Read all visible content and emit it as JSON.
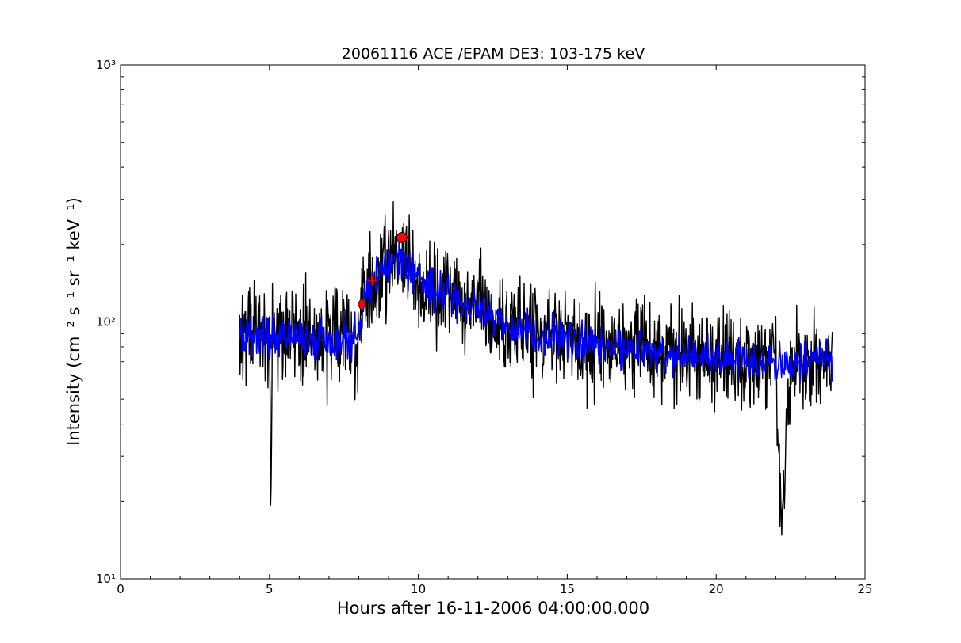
{
  "chart_data": {
    "type": "line",
    "title": "20061116 ACE /EPAM DE3: 103-175 keV",
    "xlabel": "Hours after 16-11-2006 04:00:00.000",
    "ylabel": "Intensity (cm⁻² s⁻¹ sr⁻¹ keV⁻¹)",
    "xlim": [
      0,
      25
    ],
    "ylim": [
      10,
      1000
    ],
    "y_scale": "log",
    "grid": false,
    "x_ticks": [
      0,
      5,
      10,
      15,
      20,
      25
    ],
    "x_tick_labels": [
      "0",
      "5",
      "10",
      "15",
      "20",
      "25"
    ],
    "y_ticks": [
      10,
      100,
      1000
    ],
    "y_tick_labels": [
      "10¹",
      "10²",
      "10³"
    ],
    "colors": {
      "raw": "#000000",
      "smoothed": "#0000ff",
      "markers": "#ff0000"
    },
    "series": [
      {
        "key": "raw",
        "x": [
          4.0,
          4.5,
          5.0,
          5.05,
          5.1,
          5.5,
          6.0,
          6.5,
          7.0,
          7.5,
          7.8,
          7.9,
          8.0,
          8.2,
          8.5,
          8.8,
          9.0,
          9.2,
          9.5,
          9.8,
          10.0,
          10.5,
          11.0,
          11.5,
          12.0,
          12.5,
          13.0,
          13.5,
          14.0,
          14.5,
          15.0,
          15.5,
          16.0,
          16.5,
          17.0,
          17.5,
          18.0,
          18.5,
          19.0,
          19.5,
          20.0,
          20.5,
          21.0,
          21.5,
          22.0,
          22.2,
          22.5,
          23.0,
          23.5,
          23.9
        ],
        "values": [
          90,
          95,
          80,
          21,
          85,
          88,
          92,
          90,
          85,
          88,
          95,
          60,
          100,
          130,
          150,
          170,
          180,
          175,
          165,
          150,
          140,
          130,
          125,
          120,
          115,
          100,
          95,
          92,
          90,
          88,
          85,
          80,
          82,
          80,
          78,
          80,
          75,
          74,
          75,
          73,
          72,
          74,
          70,
          68,
          70,
          17,
          70,
          68,
          70,
          72
        ]
      },
      {
        "key": "smoothed",
        "x": [
          4.0,
          4.5,
          5.0,
          5.5,
          6.0,
          6.5,
          7.0,
          7.5,
          7.8,
          8.0,
          8.2,
          8.5,
          8.8,
          9.0,
          9.3,
          9.5,
          9.8,
          10.0,
          10.5,
          11.0,
          11.5,
          12.0,
          12.5,
          13.0,
          13.5,
          14.0,
          14.5,
          15.0,
          15.5,
          16.0,
          16.5,
          17.0,
          17.5,
          18.0,
          18.5,
          19.0,
          19.5,
          20.0,
          20.5,
          21.0,
          21.5,
          22.0,
          22.5,
          23.0,
          23.5,
          23.9
        ],
        "values": [
          88,
          86,
          84,
          86,
          88,
          87,
          86,
          88,
          90,
          95,
          118,
          145,
          160,
          168,
          175,
          165,
          155,
          145,
          135,
          128,
          122,
          115,
          105,
          98,
          94,
          90,
          88,
          86,
          83,
          82,
          80,
          79,
          79,
          77,
          76,
          75,
          74,
          73,
          73,
          71,
          70,
          70,
          70,
          69,
          70,
          72
        ]
      }
    ],
    "markers": [
      {
        "shape": "plus",
        "x": 7.7,
        "y": 90
      },
      {
        "shape": "diamond",
        "x": 8.1,
        "y": 117
      },
      {
        "shape": "plus",
        "x": 8.45,
        "y": 145
      },
      {
        "shape": "circle",
        "x": 9.45,
        "y": 213
      }
    ]
  }
}
